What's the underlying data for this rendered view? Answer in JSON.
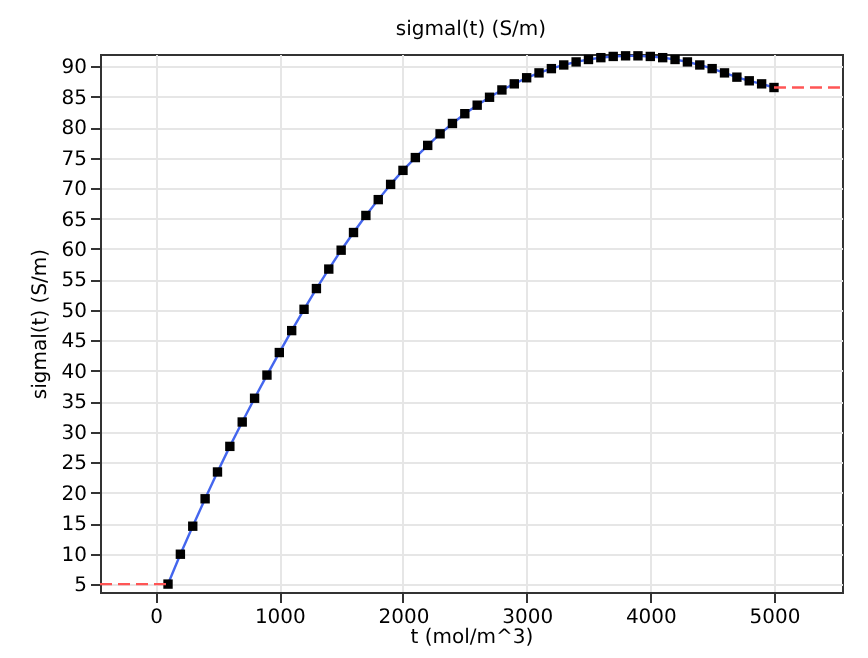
{
  "chart_data": {
    "type": "line",
    "title": "sigmal(t) (S/m)",
    "xlabel": "t (mol/m^3)",
    "ylabel": "sigmal(t) (S/m)",
    "xlim": [
      -450,
      5550
    ],
    "ylim": [
      3.7,
      92
    ],
    "xticks": [
      0,
      1000,
      2000,
      3000,
      4000,
      5000
    ],
    "yticks": [
      5,
      10,
      15,
      20,
      25,
      30,
      35,
      40,
      45,
      50,
      55,
      60,
      65,
      70,
      75,
      80,
      85,
      90
    ],
    "grid": true,
    "series": [
      {
        "color": "#4466ee",
        "marker": "square",
        "line_style": "solid",
        "x": [
          100,
          200,
          300,
          400,
          500,
          600,
          700,
          800,
          900,
          1000,
          1100,
          1200,
          1300,
          1400,
          1500,
          1600,
          1700,
          1800,
          1900,
          2000,
          2100,
          2200,
          2300,
          2400,
          2500,
          2600,
          2700,
          2800,
          2900,
          3000,
          3100,
          3200,
          3300,
          3400,
          3500,
          3600,
          3700,
          3800,
          3900,
          4000,
          4100,
          4200,
          4300,
          4400,
          4500,
          4600,
          4700,
          4800,
          4900,
          5000
        ],
        "values": [
          5,
          9.9,
          14.5,
          19.0,
          23.4,
          27.6,
          31.6,
          35.5,
          39.3,
          43.0,
          46.6,
          50.1,
          53.5,
          56.7,
          59.8,
          62.7,
          65.5,
          68.1,
          70.6,
          72.9,
          75.0,
          77.0,
          78.9,
          80.6,
          82.2,
          83.6,
          84.9,
          86.1,
          87.1,
          88.1,
          88.9,
          89.6,
          90.2,
          90.7,
          91.1,
          91.4,
          91.6,
          91.7,
          91.7,
          91.6,
          91.4,
          91.1,
          90.7,
          90.2,
          89.6,
          88.9,
          88.2,
          87.6,
          87.1,
          86.5
        ]
      },
      {
        "color": "#ff5555",
        "marker": "none",
        "line_style": "dashed",
        "x": [
          -450,
          100
        ],
        "values": [
          5,
          5
        ]
      },
      {
        "color": "#ff5555",
        "marker": "none",
        "line_style": "dashed",
        "x": [
          5000,
          5550
        ],
        "values": [
          86.5,
          86.5
        ]
      }
    ]
  }
}
